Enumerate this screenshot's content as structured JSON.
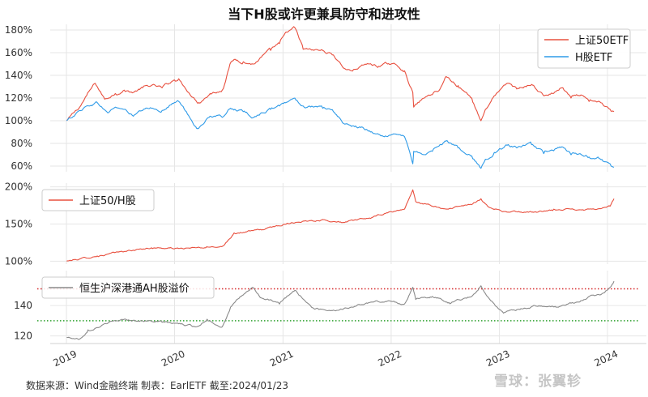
{
  "title": "当下H股或许更兼具防守和进攻性",
  "source_note": "数据来源：Wind金融终端 制表：EarlETF 截至:2024/01/23",
  "watermark": "雪球：张翼轸",
  "colors": {
    "red": "#e8503f",
    "blue": "#2f9be8",
    "gray": "#8a8a8a",
    "ref_red": "#d62728",
    "ref_green": "#2ca02c",
    "grid": "#e6e6e6"
  },
  "chart_data": [
    {
      "type": "line",
      "x_axis": {
        "type": "date",
        "range": [
          "2019-01-01",
          "2024-01-23"
        ],
        "tick_labels": [
          "2019",
          "2020",
          "2021",
          "2022",
          "2023",
          "2024"
        ]
      },
      "ylim": [
        55,
        185
      ],
      "y_ticks": [
        60,
        80,
        100,
        120,
        140,
        160,
        180
      ],
      "y_tick_labels": [
        "60%",
        "80%",
        "100%",
        "120%",
        "140%",
        "160%",
        "180%"
      ],
      "grid": true,
      "legend_position": "top-right",
      "series": [
        {
          "name": "上证50ETF",
          "color": "#e8503f",
          "points": [
            [
              "2019-01-02",
              100
            ],
            [
              "2019-02-15",
              112
            ],
            [
              "2019-03-10",
              122
            ],
            [
              "2019-04-08",
              133
            ],
            [
              "2019-05-10",
              119
            ],
            [
              "2019-06-15",
              124
            ],
            [
              "2019-07-15",
              127
            ],
            [
              "2019-08-15",
              125
            ],
            [
              "2019-09-15",
              129
            ],
            [
              "2019-10-15",
              131
            ],
            [
              "2019-11-20",
              129
            ],
            [
              "2019-12-31",
              136
            ],
            [
              "2020-01-15",
              137
            ],
            [
              "2020-02-03",
              130
            ],
            [
              "2020-03-23",
              116
            ],
            [
              "2020-04-30",
              124
            ],
            [
              "2020-06-10",
              127
            ],
            [
              "2020-07-06",
              150
            ],
            [
              "2020-07-20",
              154
            ],
            [
              "2020-08-20",
              152
            ],
            [
              "2020-09-25",
              150
            ],
            [
              "2020-10-20",
              156
            ],
            [
              "2020-11-20",
              162
            ],
            [
              "2020-12-20",
              168
            ],
            [
              "2021-01-15",
              178
            ],
            [
              "2021-02-10",
              182
            ],
            [
              "2021-02-25",
              172
            ],
            [
              "2021-03-10",
              163
            ],
            [
              "2021-04-15",
              162
            ],
            [
              "2021-05-15",
              162
            ],
            [
              "2021-06-20",
              158
            ],
            [
              "2021-07-28",
              146
            ],
            [
              "2021-08-20",
              144
            ],
            [
              "2021-09-20",
              148
            ],
            [
              "2021-10-20",
              150
            ],
            [
              "2021-11-20",
              148
            ],
            [
              "2021-12-20",
              150
            ],
            [
              "2022-01-20",
              149
            ],
            [
              "2022-02-15",
              144
            ],
            [
              "2022-03-15",
              125
            ],
            [
              "2022-03-18",
              112
            ],
            [
              "2022-04-27",
              121
            ],
            [
              "2022-05-20",
              123
            ],
            [
              "2022-06-15",
              128
            ],
            [
              "2022-07-05",
              139
            ],
            [
              "2022-08-15",
              131
            ],
            [
              "2022-09-30",
              120
            ],
            [
              "2022-10-31",
              100
            ],
            [
              "2022-11-15",
              110
            ],
            [
              "2022-12-15",
              122
            ],
            [
              "2023-01-31",
              133
            ],
            [
              "2023-03-01",
              128
            ],
            [
              "2023-04-20",
              132
            ],
            [
              "2023-05-31",
              122
            ],
            [
              "2023-06-30",
              124
            ],
            [
              "2023-07-31",
              129
            ],
            [
              "2023-08-31",
              120
            ],
            [
              "2023-09-30",
              122
            ],
            [
              "2023-10-31",
              117
            ],
            [
              "2023-11-30",
              117
            ],
            [
              "2023-12-20",
              113
            ],
            [
              "2024-01-10",
              110
            ],
            [
              "2024-01-23",
              108
            ]
          ]
        },
        {
          "name": "H股ETF",
          "color": "#2f9be8",
          "points": [
            [
              "2019-01-02",
              100
            ],
            [
              "2019-02-15",
              109
            ],
            [
              "2019-03-10",
              113
            ],
            [
              "2019-04-15",
              116
            ],
            [
              "2019-05-20",
              107
            ],
            [
              "2019-06-15",
              112
            ],
            [
              "2019-07-15",
              110
            ],
            [
              "2019-08-15",
              104
            ],
            [
              "2019-09-15",
              109
            ],
            [
              "2019-10-15",
              111
            ],
            [
              "2019-11-20",
              109
            ],
            [
              "2019-12-31",
              116
            ],
            [
              "2020-01-15",
              117
            ],
            [
              "2020-02-03",
              110
            ],
            [
              "2020-03-19",
              93
            ],
            [
              "2020-04-30",
              104
            ],
            [
              "2020-06-10",
              103
            ],
            [
              "2020-07-08",
              111
            ],
            [
              "2020-08-20",
              108
            ],
            [
              "2020-09-25",
              103
            ],
            [
              "2020-10-20",
              107
            ],
            [
              "2020-11-20",
              110
            ],
            [
              "2020-12-20",
              113
            ],
            [
              "2021-02-10",
              120
            ],
            [
              "2021-03-10",
              113
            ],
            [
              "2021-04-15",
              112
            ],
            [
              "2021-05-15",
              111
            ],
            [
              "2021-06-20",
              108
            ],
            [
              "2021-07-28",
              97
            ],
            [
              "2021-08-20",
              95
            ],
            [
              "2021-09-20",
              94
            ],
            [
              "2021-10-20",
              91
            ],
            [
              "2021-11-20",
              88
            ],
            [
              "2021-12-20",
              86
            ],
            [
              "2022-01-20",
              88
            ],
            [
              "2022-02-15",
              86
            ],
            [
              "2022-03-15",
              62
            ],
            [
              "2022-03-18",
              73
            ],
            [
              "2022-04-27",
              70
            ],
            [
              "2022-05-20",
              73
            ],
            [
              "2022-06-15",
              79
            ],
            [
              "2022-07-05",
              82
            ],
            [
              "2022-08-15",
              76
            ],
            [
              "2022-09-30",
              69
            ],
            [
              "2022-10-31",
              58
            ],
            [
              "2022-11-15",
              66
            ],
            [
              "2022-12-15",
              72
            ],
            [
              "2023-01-31",
              79
            ],
            [
              "2023-03-01",
              76
            ],
            [
              "2023-04-20",
              79
            ],
            [
              "2023-05-31",
              71
            ],
            [
              "2023-06-30",
              74
            ],
            [
              "2023-07-31",
              77
            ],
            [
              "2023-08-31",
              70
            ],
            [
              "2023-09-30",
              71
            ],
            [
              "2023-10-31",
              68
            ],
            [
              "2023-11-30",
              68
            ],
            [
              "2023-12-20",
              64
            ],
            [
              "2024-01-10",
              62
            ],
            [
              "2024-01-23",
              59
            ]
          ]
        }
      ]
    },
    {
      "type": "line",
      "x_axis": {
        "type": "date",
        "range": [
          "2019-01-01",
          "2024-01-23"
        ]
      },
      "ylim": [
        96,
        205
      ],
      "y_ticks": [
        100,
        150,
        200
      ],
      "y_tick_labels": [
        "100%",
        "150%",
        "200%"
      ],
      "grid": true,
      "legend_position": "top-left",
      "series": [
        {
          "name": "上证50/H股",
          "color": "#e8503f",
          "points": [
            [
              "2019-01-02",
              100
            ],
            [
              "2019-04-15",
              107
            ],
            [
              "2019-07-15",
              113
            ],
            [
              "2019-10-15",
              118
            ],
            [
              "2020-01-15",
              117
            ],
            [
              "2020-04-15",
              118
            ],
            [
              "2020-06-15",
              121
            ],
            [
              "2020-07-20",
              138
            ],
            [
              "2020-10-20",
              142
            ],
            [
              "2021-01-15",
              151
            ],
            [
              "2021-03-10",
              154
            ],
            [
              "2021-05-15",
              156
            ],
            [
              "2021-07-28",
              152
            ],
            [
              "2021-10-20",
              158
            ],
            [
              "2021-12-20",
              165
            ],
            [
              "2022-02-15",
              170
            ],
            [
              "2022-03-15",
              196
            ],
            [
              "2022-03-25",
              180
            ],
            [
              "2022-05-20",
              174
            ],
            [
              "2022-07-05",
              170
            ],
            [
              "2022-09-30",
              176
            ],
            [
              "2022-10-31",
              184
            ],
            [
              "2022-11-30",
              172
            ],
            [
              "2023-01-31",
              166
            ],
            [
              "2023-04-20",
              166
            ],
            [
              "2023-06-30",
              168
            ],
            [
              "2023-08-31",
              170
            ],
            [
              "2023-10-31",
              170
            ],
            [
              "2023-12-20",
              172
            ],
            [
              "2024-01-10",
              174
            ],
            [
              "2024-01-23",
              184
            ]
          ]
        }
      ]
    },
    {
      "type": "line",
      "x_axis": {
        "type": "date",
        "range": [
          "2019-01-01",
          "2024-01-23"
        ],
        "tick_labels": [
          "2019",
          "2020",
          "2021",
          "2022",
          "2023",
          "2024"
        ]
      },
      "ylim": [
        115,
        163
      ],
      "y_ticks": [
        120,
        140
      ],
      "y_tick_labels": [
        "120",
        "140"
      ],
      "grid": true,
      "legend_position": "top-left",
      "reference_lines": [
        {
          "y": 151,
          "color": "#d62728",
          "style": "dotted"
        },
        {
          "y": 130,
          "color": "#2ca02c",
          "style": "dotted"
        }
      ],
      "series": [
        {
          "name": "恒生沪深港通AH股溢价",
          "color": "#8a8a8a",
          "points": [
            [
              "2019-01-02",
              119
            ],
            [
              "2019-02-15",
              118
            ],
            [
              "2019-03-15",
              124
            ],
            [
              "2019-05-15",
              128
            ],
            [
              "2019-07-15",
              131
            ],
            [
              "2019-09-15",
              130
            ],
            [
              "2019-11-20",
              129
            ],
            [
              "2020-01-15",
              128
            ],
            [
              "2020-03-15",
              126
            ],
            [
              "2020-04-20",
              131
            ],
            [
              "2020-06-10",
              126
            ],
            [
              "2020-07-08",
              139
            ],
            [
              "2020-08-20",
              147
            ],
            [
              "2020-09-20",
              152
            ],
            [
              "2020-10-20",
              145
            ],
            [
              "2020-12-20",
              141
            ],
            [
              "2021-02-10",
              150
            ],
            [
              "2021-04-15",
              138
            ],
            [
              "2021-06-20",
              137
            ],
            [
              "2021-08-20",
              139
            ],
            [
              "2021-10-20",
              142
            ],
            [
              "2021-12-20",
              143
            ],
            [
              "2022-02-15",
              141
            ],
            [
              "2022-03-15",
              152
            ],
            [
              "2022-03-25",
              144
            ],
            [
              "2022-05-20",
              146
            ],
            [
              "2022-07-15",
              142
            ],
            [
              "2022-09-30",
              146
            ],
            [
              "2022-10-31",
              153
            ],
            [
              "2022-11-30",
              144
            ],
            [
              "2023-01-15",
              135
            ],
            [
              "2023-03-15",
              138
            ],
            [
              "2023-05-15",
              140
            ],
            [
              "2023-07-15",
              139
            ],
            [
              "2023-09-15",
              142
            ],
            [
              "2023-10-31",
              146
            ],
            [
              "2023-12-15",
              148
            ],
            [
              "2024-01-10",
              152
            ],
            [
              "2024-01-23",
              156
            ]
          ]
        }
      ]
    }
  ]
}
